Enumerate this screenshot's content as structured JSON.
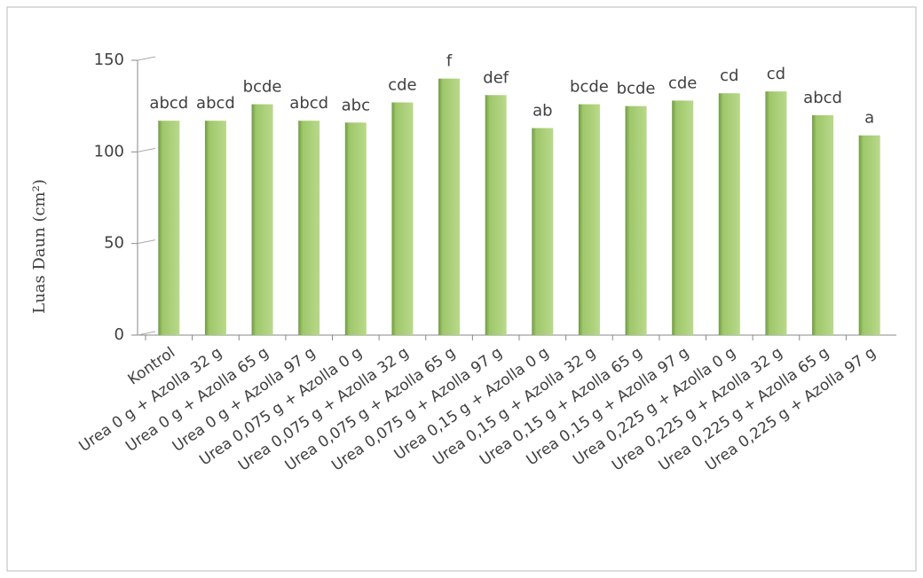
{
  "chart_data": {
    "type": "bar",
    "y_label": "Luas Daun (cm²)",
    "categories": [
      "Kontrol",
      "Urea 0 g + Azolla 32 g",
      "Urea 0 g + Azolla 65 g",
      "Urea 0 g + Azolla 97 g",
      "Urea 0,075 g + Azolla 0 g",
      "Urea 0,075 g + Azolla 32 g",
      "Urea 0,075 g + Azolla 65 g",
      "Urea 0,075 g + Azolla 97 g",
      "Urea 0,15 g + Azolla 0 g",
      "Urea 0,15 g + Azolla 32 g",
      "Urea 0,15 g + Azolla 65 g",
      "Urea 0,15 g + Azolla 97 g",
      "Urea 0,225 g + Azolla 0 g",
      "Urea 0,225 g + Azolla 32 g",
      "Urea 0,225 g + Azolla 65 g",
      "Urea 0,225 g + Azolla 97 g"
    ],
    "values": [
      117,
      117,
      126,
      117,
      116,
      127,
      140,
      131,
      113,
      126,
      125,
      128,
      132,
      133,
      120,
      109
    ],
    "annotations": [
      "abcd",
      "abcd",
      "bcde",
      "abcd",
      "abc",
      "cde",
      "f",
      "def",
      "ab",
      "bcde",
      "bcde",
      "cde",
      "cd",
      "cd",
      "abcd",
      "a"
    ],
    "color": "#9fc76a",
    "ylim": [
      0,
      150
    ],
    "yticks": [
      0,
      50,
      100,
      150
    ]
  }
}
